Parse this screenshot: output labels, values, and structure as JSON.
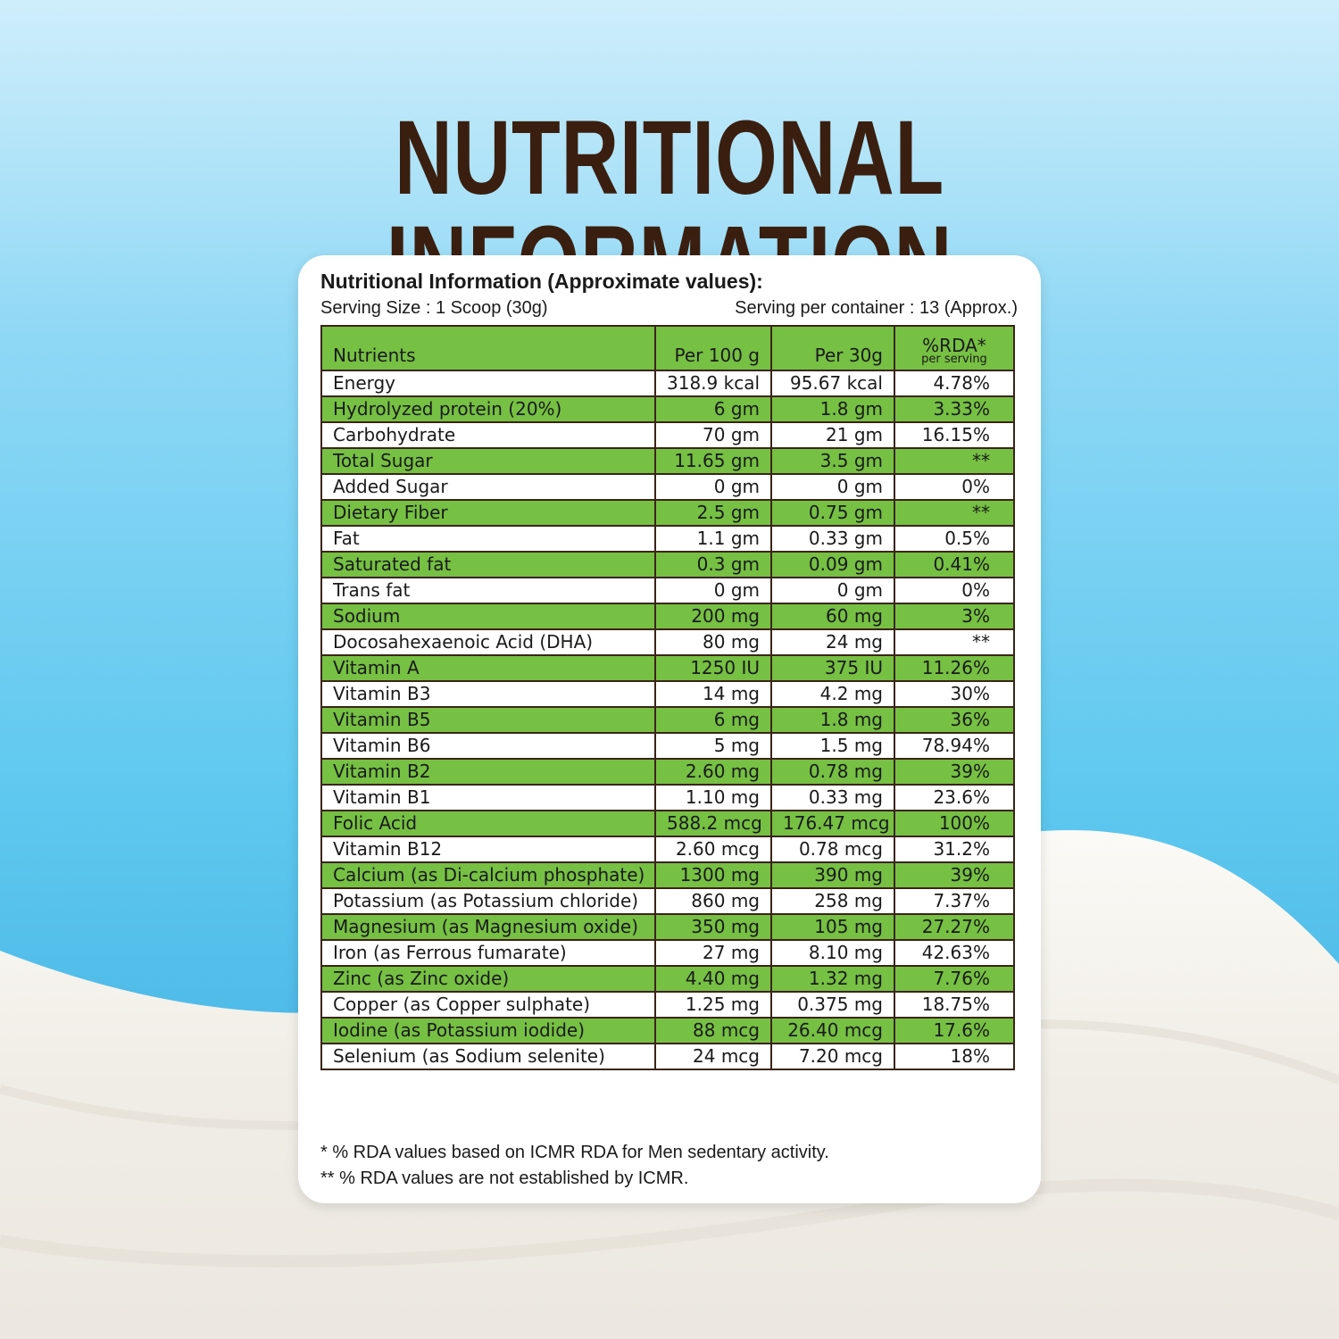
{
  "headline": "NUTRITIONAL INFORMATION",
  "card": {
    "title": "Nutritional Information (Approximate values):",
    "serving_size": "Serving Size : 1 Scoop (30g)",
    "serving_per_container": "Serving per container : 13 (Approx.)"
  },
  "table": {
    "headers": {
      "nutrients": "Nutrients",
      "per100": "Per 100 g",
      "per30": "Per 30g",
      "rda": "%RDA*",
      "rda_sub": "per serving"
    },
    "rows": [
      {
        "name": "Energy",
        "per100": "318.9 kcal",
        "per30": "95.67 kcal",
        "rda": "4.78%"
      },
      {
        "name": "Hydrolyzed protein (20%)",
        "per100": "6 gm",
        "per30": "1.8 gm",
        "rda": "3.33%"
      },
      {
        "name": "Carbohydrate",
        "per100": "70 gm",
        "per30": "21 gm",
        "rda": "16.15%"
      },
      {
        "name": "Total Sugar",
        "per100": "11.65 gm",
        "per30": "3.5 gm",
        "rda": "**"
      },
      {
        "name": "Added Sugar",
        "per100": "0 gm",
        "per30": "0 gm",
        "rda": "0%"
      },
      {
        "name": "Dietary Fiber",
        "per100": "2.5 gm",
        "per30": "0.75 gm",
        "rda": "**"
      },
      {
        "name": "Fat",
        "per100": "1.1 gm",
        "per30": "0.33 gm",
        "rda": "0.5%"
      },
      {
        "name": "Saturated fat",
        "per100": "0.3 gm",
        "per30": "0.09 gm",
        "rda": "0.41%"
      },
      {
        "name": "Trans fat",
        "per100": "0 gm",
        "per30": "0 gm",
        "rda": "0%"
      },
      {
        "name": "Sodium",
        "per100": "200 mg",
        "per30": "60 mg",
        "rda": "3%"
      },
      {
        "name": "Docosahexaenoic Acid (DHA)",
        "per100": "80 mg",
        "per30": "24 mg",
        "rda": "**"
      },
      {
        "name": "Vitamin A",
        "per100": "1250 IU",
        "per30": "375 IU",
        "rda": "11.26%"
      },
      {
        "name": "Vitamin B3",
        "per100": "14 mg",
        "per30": "4.2 mg",
        "rda": "30%"
      },
      {
        "name": "Vitamin B5",
        "per100": "6 mg",
        "per30": "1.8 mg",
        "rda": "36%"
      },
      {
        "name": "Vitamin B6",
        "per100": "5 mg",
        "per30": "1.5 mg",
        "rda": "78.94%"
      },
      {
        "name": "Vitamin B2",
        "per100": "2.60 mg",
        "per30": "0.78 mg",
        "rda": "39%"
      },
      {
        "name": "Vitamin B1",
        "per100": "1.10 mg",
        "per30": "0.33 mg",
        "rda": "23.6%"
      },
      {
        "name": "Folic Acid",
        "per100": "588.2 mcg",
        "per30": "176.47 mcg",
        "rda": "100%"
      },
      {
        "name": "Vitamin B12",
        "per100": "2.60 mcg",
        "per30": "0.78 mcg",
        "rda": "31.2%"
      },
      {
        "name": "Calcium (as Di-calcium phosphate)",
        "per100": "1300 mg",
        "per30": "390 mg",
        "rda": "39%"
      },
      {
        "name": "Potassium (as Potassium chloride)",
        "per100": "860 mg",
        "per30": "258 mg",
        "rda": "7.37%"
      },
      {
        "name": "Magnesium (as Magnesium oxide)",
        "per100": "350 mg",
        "per30": "105 mg",
        "rda": "27.27%"
      },
      {
        "name": "Iron (as Ferrous fumarate)",
        "per100": "27 mg",
        "per30": "8.10 mg",
        "rda": "42.63%"
      },
      {
        "name": "Zinc (as Zinc oxide)",
        "per100": "4.40 mg",
        "per30": "1.32 mg",
        "rda": "7.76%"
      },
      {
        "name": "Copper (as Copper sulphate)",
        "per100": "1.25 mg",
        "per30": "0.375 mg",
        "rda": "18.75%"
      },
      {
        "name": "Iodine (as Potassium iodide)",
        "per100": "88 mcg",
        "per30": "26.40 mcg",
        "rda": "17.6%"
      },
      {
        "name": "Selenium (as Sodium selenite)",
        "per100": "24 mcg",
        "per30": "7.20 mcg",
        "rda": "18%"
      }
    ]
  },
  "footnotes": [
    "* % RDA values based on ICMR RDA for Men sedentary  activity.",
    "** % RDA values are not established by ICMR."
  ],
  "colors": {
    "headline": "#3a1f10",
    "row_green": "#76c043",
    "border": "#3b2417",
    "sky_light": "#cfeefb",
    "sky_dark": "#3aa7dd"
  }
}
